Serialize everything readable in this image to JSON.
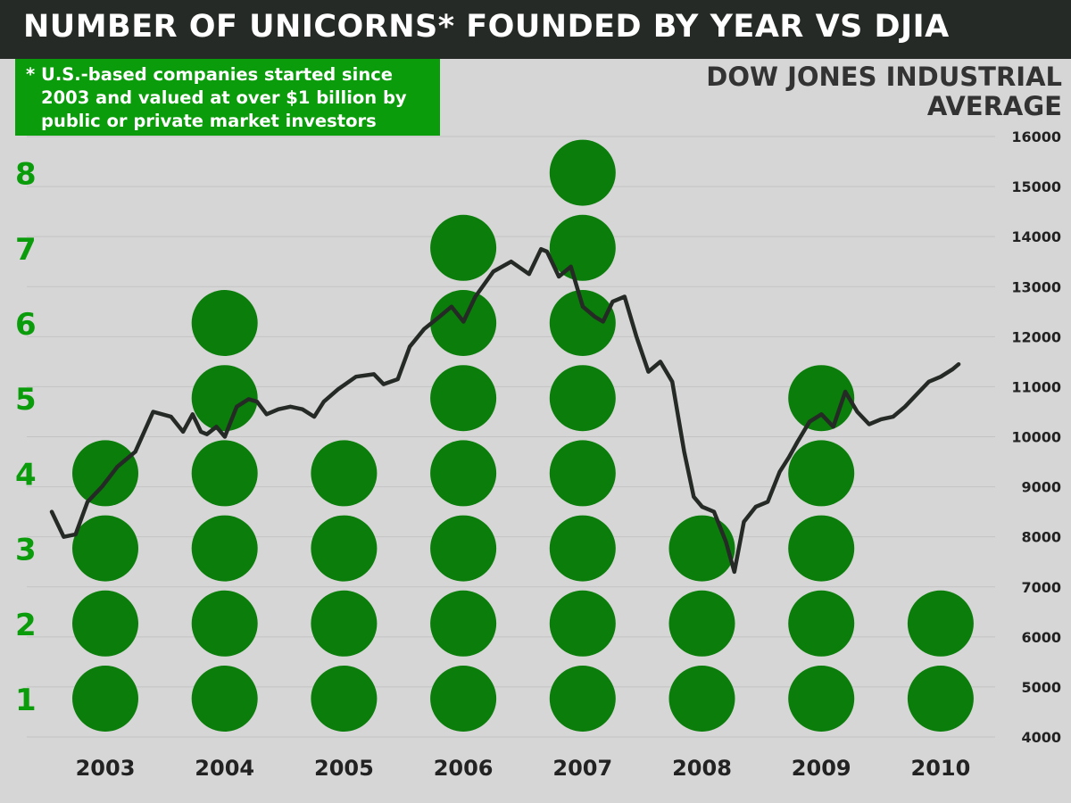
{
  "title": "NUMBER OF UNICORNS* FOUNDED BY YEAR VS DJIA",
  "footnote": "* U.S.-based companies started since 2003 and valued at over $1 billion by public or private market investors",
  "right_axis_title": "DOW JONES INDUSTRIAL AVERAGE",
  "colors": {
    "title_bar": "#262a26",
    "accent_green": "#0a9c0a",
    "dot_green": "#0a7d0a",
    "djia_line": "#262a26",
    "background": "#d6d6d6"
  },
  "chart_data": {
    "type": "bar",
    "style": "stacked dots (one dot per unicorn) with line overlay on secondary axis",
    "categories": [
      "2003",
      "2004",
      "2005",
      "2006",
      "2007",
      "2008",
      "2009",
      "2010"
    ],
    "series": [
      {
        "values": [
          4,
          6,
          4,
          7,
          8,
          3,
          5,
          2
        ]
      }
    ],
    "left_axis": {
      "ticks": [
        1,
        2,
        3,
        4,
        5,
        6,
        7,
        8
      ]
    },
    "right_axis": {
      "ticks": [
        4000,
        5000,
        6000,
        7000,
        8000,
        9000,
        10000,
        11000,
        12000,
        13000,
        14000,
        15000,
        16000
      ],
      "ylim": [
        4000,
        16000
      ]
    },
    "line_series": {
      "type": "line",
      "axis": "right",
      "x": [
        2003.0,
        2003.1,
        2003.2,
        2003.3,
        2003.42,
        2003.55,
        2003.7,
        2003.85,
        2004.0,
        2004.1,
        2004.18,
        2004.25,
        2004.3,
        2004.38,
        2004.45,
        2004.55,
        2004.65,
        2004.72,
        2004.8,
        2004.9,
        2005.0,
        2005.1,
        2005.2,
        2005.28,
        2005.4,
        2005.55,
        2005.7,
        2005.78,
        2005.9,
        2006.0,
        2006.12,
        2006.25,
        2006.35,
        2006.45,
        2006.55,
        2006.7,
        2006.85,
        2007.0,
        2007.1,
        2007.15,
        2007.25,
        2007.35,
        2007.45,
        2007.55,
        2007.62,
        2007.7,
        2007.8,
        2007.9,
        2008.0,
        2008.1,
        2008.2,
        2008.3,
        2008.38,
        2008.45,
        2008.55,
        2008.65,
        2008.72,
        2008.8,
        2008.9,
        2009.0,
        2009.1,
        2009.18,
        2009.25,
        2009.35,
        2009.45,
        2009.55,
        2009.65,
        2009.75,
        2009.85,
        2009.95,
        2010.05,
        2010.15,
        2010.25,
        2010.35,
        2010.45,
        2010.55,
        2010.6
      ],
      "y": [
        8500,
        8000,
        8050,
        8700,
        9000,
        9400,
        9700,
        10500,
        10400,
        10100,
        10450,
        10100,
        10050,
        10200,
        10000,
        10600,
        10750,
        10700,
        10450,
        10550,
        10600,
        10550,
        10400,
        10700,
        10950,
        11200,
        11250,
        11050,
        11150,
        11800,
        12150,
        12400,
        12600,
        12300,
        12800,
        13300,
        13500,
        13250,
        13750,
        13700,
        13200,
        13400,
        12600,
        12400,
        12300,
        12700,
        12800,
        12000,
        11300,
        11500,
        11100,
        9700,
        8800,
        8600,
        8500,
        7900,
        7300,
        8300,
        8600,
        8700,
        9300,
        9600,
        9900,
        10300,
        10450,
        10200,
        10900,
        10500,
        10250,
        10350,
        10400,
        10600,
        10850,
        11100,
        11200,
        11350,
        11450
      ]
    }
  }
}
